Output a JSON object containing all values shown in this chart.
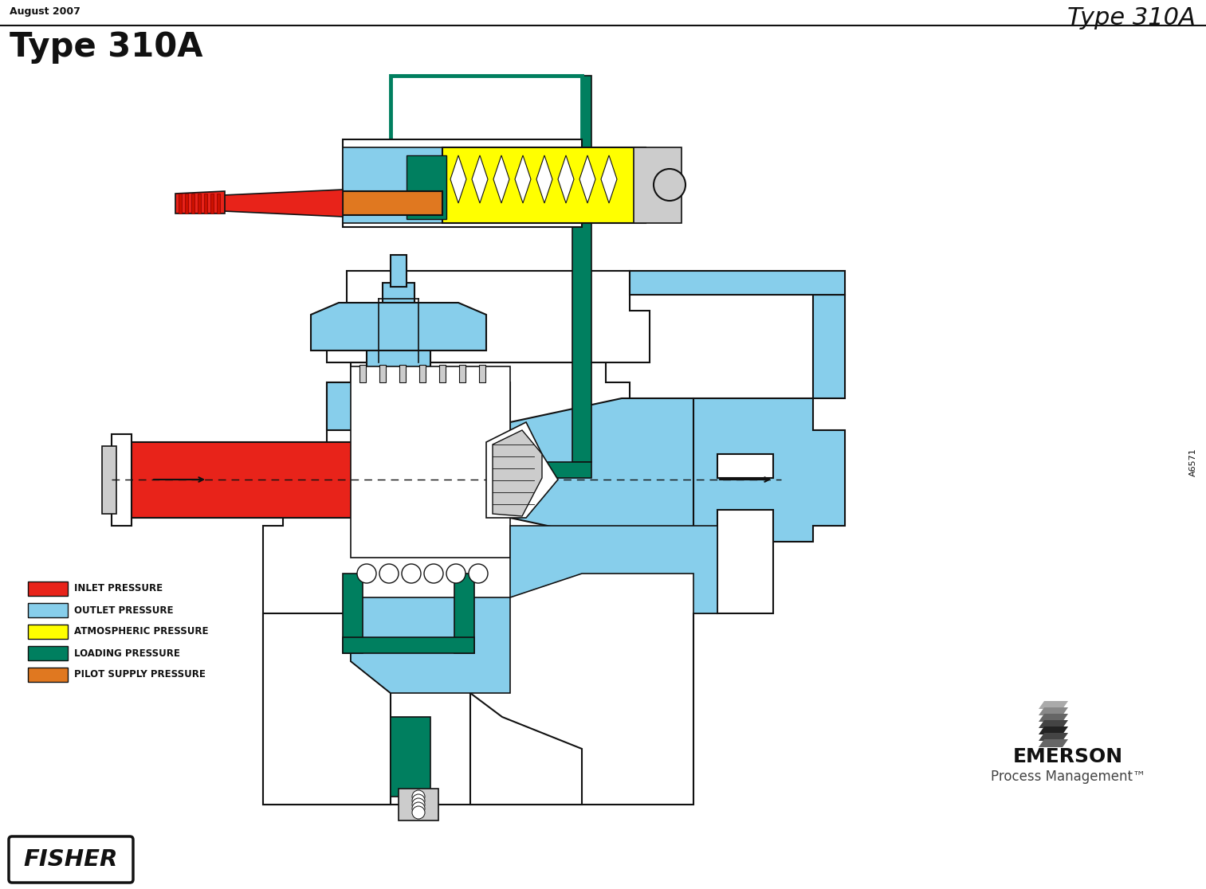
{
  "title": "Type 310A",
  "subtitle": "Type 310A",
  "date_label": "August 2007",
  "figure_id": "A6571",
  "background_color": "#ffffff",
  "title_fontsize": 22,
  "subtitle_fontsize": 30,
  "date_fontsize": 9,
  "legend_items": [
    {
      "label": "INLET PRESSURE",
      "color": "#e8231a"
    },
    {
      "label": "OUTLET PRESSURE",
      "color": "#87ceeb"
    },
    {
      "label": "ATMOSPHERIC PRESSURE",
      "color": "#ffff00"
    },
    {
      "label": "LOADING PRESSURE",
      "color": "#007f5f"
    },
    {
      "label": "PILOT SUPPLY PRESSURE",
      "color": "#e07820"
    }
  ],
  "legend_fontsize": 8.5,
  "line_color": "#1a1a1a",
  "fisher_logo_text": "FISHER",
  "emerson_logo_text": "EMERSON",
  "emerson_sub_text": "Process Management"
}
